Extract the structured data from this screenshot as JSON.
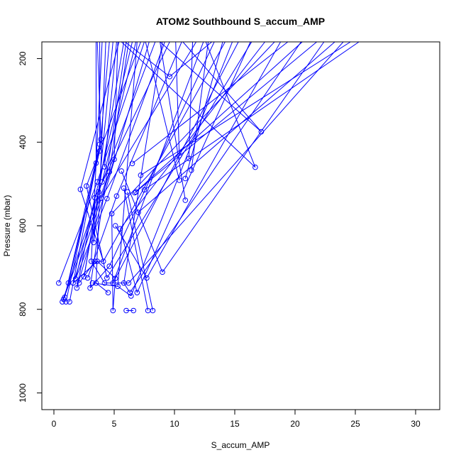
{
  "chart_data": {
    "type": "line",
    "title": "ATOM2 Southbound S_accum_AMP",
    "xlabel": "S_accum_AMP",
    "ylabel": "Pressure (mbar)",
    "xlim": [
      -1,
      32
    ],
    "ylim": [
      1040,
      160
    ],
    "y_inverted": true,
    "x_ticks": [
      0,
      5,
      10,
      15,
      20,
      25,
      30
    ],
    "x_tick_labels": [
      "0",
      "5",
      "10",
      "15",
      "20",
      "25",
      "30"
    ],
    "y_ticks": [
      200,
      400,
      600,
      800,
      1000
    ],
    "y_tick_labels": [
      "200",
      "400",
      "600",
      "800",
      "1000"
    ],
    "grid": false,
    "legend": "none",
    "color": "#0000ff",
    "marker": "open-circle",
    "points": [
      {
        "x": 0.4,
        "y": 737
      },
      {
        "x": 0.7,
        "y": 782
      },
      {
        "x": 0.8,
        "y": 776
      },
      {
        "x": 0.9,
        "y": 771
      },
      {
        "x": 1.0,
        "y": 782
      },
      {
        "x": 1.2,
        "y": 737
      },
      {
        "x": 1.3,
        "y": 782
      },
      {
        "x": 1.6,
        "y": 737
      },
      {
        "x": 1.8,
        "y": 727
      },
      {
        "x": 1.9,
        "y": 749
      },
      {
        "x": 2.1,
        "y": 737
      },
      {
        "x": 2.2,
        "y": 513
      },
      {
        "x": 2.5,
        "y": 722
      },
      {
        "x": 2.7,
        "y": 505
      },
      {
        "x": 2.8,
        "y": 725
      },
      {
        "x": 3.0,
        "y": 749
      },
      {
        "x": 3.1,
        "y": 685
      },
      {
        "x": 3.2,
        "y": 737
      },
      {
        "x": 3.3,
        "y": 640
      },
      {
        "x": 3.4,
        "y": 533
      },
      {
        "x": 3.4,
        "y": 685
      },
      {
        "x": 3.5,
        "y": 450
      },
      {
        "x": 3.5,
        "y": 737
      },
      {
        "x": 3.6,
        "y": 495
      },
      {
        "x": 3.6,
        "y": 685
      },
      {
        "x": 3.7,
        "y": 519
      },
      {
        "x": 3.8,
        "y": 421
      },
      {
        "x": 3.8,
        "y": 405
      },
      {
        "x": 3.9,
        "y": 393
      },
      {
        "x": 3.9,
        "y": 534
      },
      {
        "x": 4.0,
        "y": 495
      },
      {
        "x": 4.1,
        "y": 685
      },
      {
        "x": 4.2,
        "y": 737
      },
      {
        "x": 4.2,
        "y": 459
      },
      {
        "x": 4.4,
        "y": 535
      },
      {
        "x": 4.4,
        "y": 725
      },
      {
        "x": 4.5,
        "y": 760
      },
      {
        "x": 4.6,
        "y": 471
      },
      {
        "x": 4.6,
        "y": 697
      },
      {
        "x": 4.8,
        "y": 571
      },
      {
        "x": 4.9,
        "y": 737
      },
      {
        "x": 4.9,
        "y": 803
      },
      {
        "x": 5.0,
        "y": 441
      },
      {
        "x": 5.1,
        "y": 726
      },
      {
        "x": 5.1,
        "y": 600
      },
      {
        "x": 5.2,
        "y": 529
      },
      {
        "x": 5.3,
        "y": 745
      },
      {
        "x": 5.5,
        "y": 607
      },
      {
        "x": 5.6,
        "y": 469
      },
      {
        "x": 5.8,
        "y": 510
      },
      {
        "x": 5.8,
        "y": 737
      },
      {
        "x": 6.0,
        "y": 803
      },
      {
        "x": 6.1,
        "y": 519
      },
      {
        "x": 6.2,
        "y": 737
      },
      {
        "x": 6.3,
        "y": 760
      },
      {
        "x": 6.4,
        "y": 768
      },
      {
        "x": 6.6,
        "y": 803
      },
      {
        "x": 6.5,
        "y": 451
      },
      {
        "x": 6.7,
        "y": 521
      },
      {
        "x": 6.8,
        "y": 519
      },
      {
        "x": 6.9,
        "y": 760
      },
      {
        "x": 7.0,
        "y": 568
      },
      {
        "x": 7.2,
        "y": 479
      },
      {
        "x": 7.5,
        "y": 514
      },
      {
        "x": 7.7,
        "y": 725
      },
      {
        "x": 7.8,
        "y": 803
      },
      {
        "x": 8.2,
        "y": 803
      },
      {
        "x": 9.0,
        "y": 711
      },
      {
        "x": 9.6,
        "y": 243
      },
      {
        "x": 10.4,
        "y": 432
      },
      {
        "x": 10.4,
        "y": 491
      },
      {
        "x": 10.9,
        "y": 539
      },
      {
        "x": 10.9,
        "y": 487
      },
      {
        "x": 11.2,
        "y": 439
      },
      {
        "x": 11.4,
        "y": 467
      },
      {
        "x": 16.7,
        "y": 460
      },
      {
        "x": 17.2,
        "y": 375
      }
    ],
    "segments": [
      [
        1.0,
        782,
        3.5,
        450
      ],
      [
        1.3,
        782,
        3.9,
        393
      ],
      [
        0.9,
        771,
        3.8,
        405
      ],
      [
        0.8,
        776,
        4.6,
        471
      ],
      [
        0.7,
        782,
        4.0,
        495
      ],
      [
        1.2,
        737,
        3.8,
        421
      ],
      [
        1.6,
        737,
        5.0,
        441
      ],
      [
        0.4,
        737,
        3.6,
        495
      ],
      [
        1.8,
        727,
        4.4,
        535
      ],
      [
        1.9,
        749,
        3.4,
        533
      ],
      [
        2.5,
        722,
        3.7,
        519
      ],
      [
        2.8,
        725,
        5.2,
        529
      ],
      [
        3.0,
        749,
        4.6,
        697
      ],
      [
        3.1,
        685,
        4.2,
        737
      ],
      [
        3.2,
        737,
        5.3,
        745
      ],
      [
        3.3,
        640,
        3.4,
        533
      ],
      [
        3.4,
        685,
        4.1,
        685
      ],
      [
        3.6,
        685,
        5.1,
        726
      ],
      [
        2.2,
        513,
        4.1,
        685
      ],
      [
        2.7,
        505,
        4.4,
        725
      ],
      [
        3.5,
        737,
        4.5,
        760
      ],
      [
        4.2,
        737,
        4.9,
        737
      ],
      [
        4.9,
        737,
        6.2,
        737
      ],
      [
        5.8,
        737,
        6.3,
        760
      ],
      [
        5.3,
        745,
        6.4,
        768
      ],
      [
        5.5,
        607,
        6.9,
        760
      ],
      [
        5.1,
        600,
        7.7,
        725
      ],
      [
        4.8,
        571,
        4.9,
        803
      ],
      [
        5.1,
        726,
        4.9,
        803
      ],
      [
        6.0,
        803,
        6.6,
        803
      ],
      [
        5.8,
        510,
        7.8,
        803
      ],
      [
        6.1,
        519,
        8.2,
        803
      ],
      [
        5.6,
        469,
        9.0,
        711
      ],
      [
        3.6,
        685,
        1.6,
        737
      ],
      [
        3.4,
        685,
        2.1,
        737
      ],
      [
        3.5,
        450,
        3.5,
        160
      ],
      [
        3.8,
        405,
        3.8,
        160
      ],
      [
        3.9,
        393,
        3.6,
        160
      ],
      [
        3.8,
        421,
        4.6,
        160
      ],
      [
        4.2,
        459,
        5.2,
        160
      ],
      [
        4.6,
        471,
        6.2,
        160
      ],
      [
        5.0,
        441,
        5.3,
        160
      ],
      [
        4.0,
        495,
        6.8,
        160
      ],
      [
        3.6,
        495,
        7.5,
        160
      ],
      [
        3.7,
        519,
        8.4,
        160
      ],
      [
        4.4,
        535,
        9.2,
        160
      ],
      [
        3.4,
        533,
        9.6,
        160
      ],
      [
        5.2,
        529,
        10.6,
        160
      ],
      [
        3.9,
        534,
        11.8,
        160
      ],
      [
        4.9,
        737,
        12.4,
        160
      ],
      [
        4.6,
        697,
        13.3,
        160
      ],
      [
        4.1,
        685,
        14.2,
        160
      ],
      [
        5.1,
        726,
        15.3,
        160
      ],
      [
        4.4,
        725,
        16.4,
        160
      ],
      [
        5.5,
        607,
        17.5,
        160
      ],
      [
        4.8,
        571,
        18.3,
        160
      ],
      [
        6.5,
        451,
        19.4,
        160
      ],
      [
        6.7,
        521,
        20.6,
        160
      ],
      [
        6.8,
        519,
        21.8,
        160
      ],
      [
        7.0,
        568,
        23.3,
        160
      ],
      [
        7.2,
        479,
        24.6,
        160
      ],
      [
        7.5,
        514,
        25.3,
        160
      ],
      [
        10.4,
        491,
        7.6,
        160
      ],
      [
        10.9,
        539,
        8.8,
        160
      ],
      [
        10.4,
        432,
        10.1,
        160
      ],
      [
        11.2,
        439,
        11.5,
        160
      ],
      [
        11.4,
        467,
        12.8,
        160
      ],
      [
        10.9,
        487,
        14.0,
        160
      ],
      [
        9.6,
        243,
        13.1,
        160
      ],
      [
        9.6,
        243,
        5.9,
        160
      ],
      [
        16.7,
        460,
        5.6,
        160
      ],
      [
        17.2,
        375,
        8.8,
        160
      ],
      [
        17.2,
        375,
        10.7,
        160
      ],
      [
        16.7,
        460,
        12.6,
        160
      ],
      [
        6.9,
        760,
        16.3,
        160
      ],
      [
        7.7,
        725,
        18.8,
        160
      ],
      [
        9.0,
        711,
        22.4,
        160
      ],
      [
        6.3,
        760,
        20.5,
        160
      ],
      [
        6.4,
        768,
        14.8,
        160
      ],
      [
        6.2,
        737,
        24.0,
        160
      ],
      [
        5.8,
        737,
        9.0,
        160
      ],
      [
        5.3,
        745,
        6.9,
        160
      ],
      [
        3.5,
        737,
        4.3,
        160
      ],
      [
        3.1,
        685,
        4.0,
        160
      ],
      [
        3.3,
        640,
        4.9,
        160
      ],
      [
        2.2,
        513,
        5.4,
        160
      ],
      [
        2.7,
        505,
        7.2,
        160
      ],
      [
        3.0,
        749,
        6.0,
        160
      ],
      [
        2.5,
        722,
        5.8,
        160
      ],
      [
        1.8,
        727,
        6.5,
        160
      ],
      [
        1.9,
        749,
        7.9,
        160
      ]
    ]
  }
}
